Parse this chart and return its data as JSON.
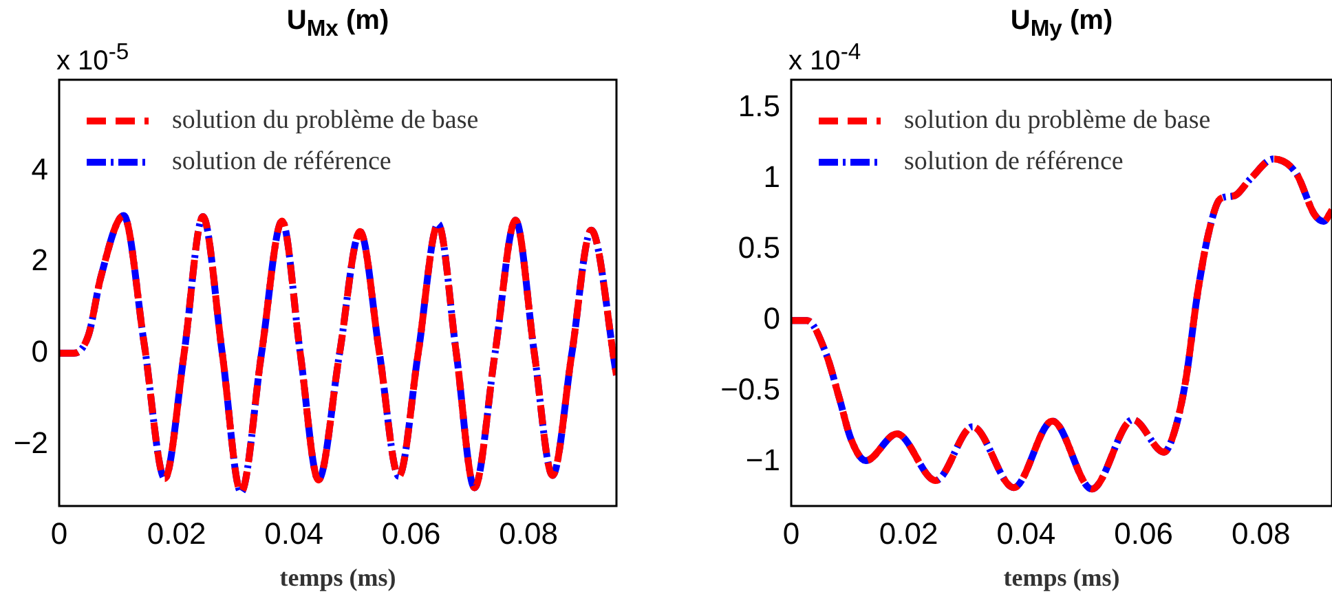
{
  "chart_data": [
    {
      "type": "line",
      "title": "U$_{Mx}$ (m)",
      "xlabel": "temps (ms)",
      "annotations": [
        "x 10$^{-5}$"
      ],
      "legend": "top left",
      "grid": false,
      "line_style": "dashed",
      "x": [
        0,
        0.0025,
        0.005,
        0.0071,
        0.011,
        0.0145,
        0.018,
        0.0213,
        0.0245,
        0.0278,
        0.031,
        0.0345,
        0.038,
        0.0411,
        0.0442,
        0.0478,
        0.0513,
        0.0546,
        0.0579,
        0.0612,
        0.0646,
        0.0677,
        0.0708,
        0.0743,
        0.0778,
        0.081,
        0.0841,
        0.0874,
        0.0907,
        0.095
      ],
      "xlim": [
        0,
        0.095
      ],
      "xticks": [
        0,
        0.02,
        0.04,
        0.06,
        0.08
      ],
      "ylim": [
        -3.35,
        6
      ],
      "yticks": [
        -2,
        0,
        2,
        4
      ],
      "series": [
        {
          "name": "solution du problème de base",
          "color": "#ff0000",
          "values": [
            0,
            0,
            0.4,
            1.67,
            3.02,
            0.2,
            -2.75,
            0,
            3.0,
            0,
            -3.05,
            0,
            2.9,
            0,
            -2.78,
            0,
            2.67,
            0,
            -2.7,
            0,
            2.84,
            0,
            -2.95,
            0,
            2.92,
            0,
            -2.68,
            0,
            2.7,
            -0.48
          ]
        },
        {
          "name": "solution de référence",
          "color": "#0000ff",
          "values": [
            0,
            0,
            0.4,
            1.67,
            3.02,
            0.2,
            -2.75,
            0,
            3.0,
            0,
            -3.05,
            0,
            2.9,
            0,
            -2.78,
            0,
            2.67,
            0,
            -2.7,
            0,
            2.84,
            0,
            -2.95,
            0,
            2.92,
            0,
            -2.68,
            0,
            2.7,
            -0.48
          ]
        }
      ]
    },
    {
      "type": "line",
      "title": "U$_{My}$ (m)",
      "xlabel": "temps (ms)",
      "annotations": [
        "x 10$^{-4}$"
      ],
      "legend": "top left",
      "grid": false,
      "line_style": "dashed",
      "x": [
        0,
        0.0027,
        0.0059,
        0.0082,
        0.0102,
        0.0127,
        0.018,
        0.0246,
        0.0309,
        0.0379,
        0.0445,
        0.0512,
        0.0582,
        0.0635,
        0.0653,
        0.0672,
        0.0692,
        0.0711,
        0.0731,
        0.0754,
        0.0782,
        0.0821,
        0.086,
        0.0891,
        0.0907,
        0.0921
      ],
      "xlim": [
        0,
        0.0921
      ],
      "xticks": [
        0,
        0.02,
        0.04,
        0.06,
        0.08
      ],
      "ylim": [
        -1.31,
        1.7
      ],
      "yticks": [
        -1,
        -0.5,
        0,
        0.5,
        1,
        1.5
      ],
      "series": [
        {
          "name": "solution du problème de base",
          "color": "#ff0000",
          "values": [
            0,
            0,
            -0.23,
            -0.55,
            -0.84,
            -0.99,
            -0.8,
            -1.13,
            -0.75,
            -1.18,
            -0.71,
            -1.19,
            -0.7,
            -0.93,
            -0.78,
            -0.42,
            0.19,
            0.62,
            0.86,
            0.88,
            1.0,
            1.14,
            1.04,
            0.75,
            0.7,
            0.78
          ]
        },
        {
          "name": "solution de référence",
          "color": "#0000ff",
          "values": [
            0,
            0,
            -0.23,
            -0.55,
            -0.84,
            -0.99,
            -0.8,
            -1.13,
            -0.75,
            -1.18,
            -0.71,
            -1.19,
            -0.7,
            -0.93,
            -0.78,
            -0.42,
            0.19,
            0.62,
            0.86,
            0.88,
            1.0,
            1.14,
            1.04,
            0.75,
            0.7,
            0.78
          ]
        }
      ]
    }
  ]
}
